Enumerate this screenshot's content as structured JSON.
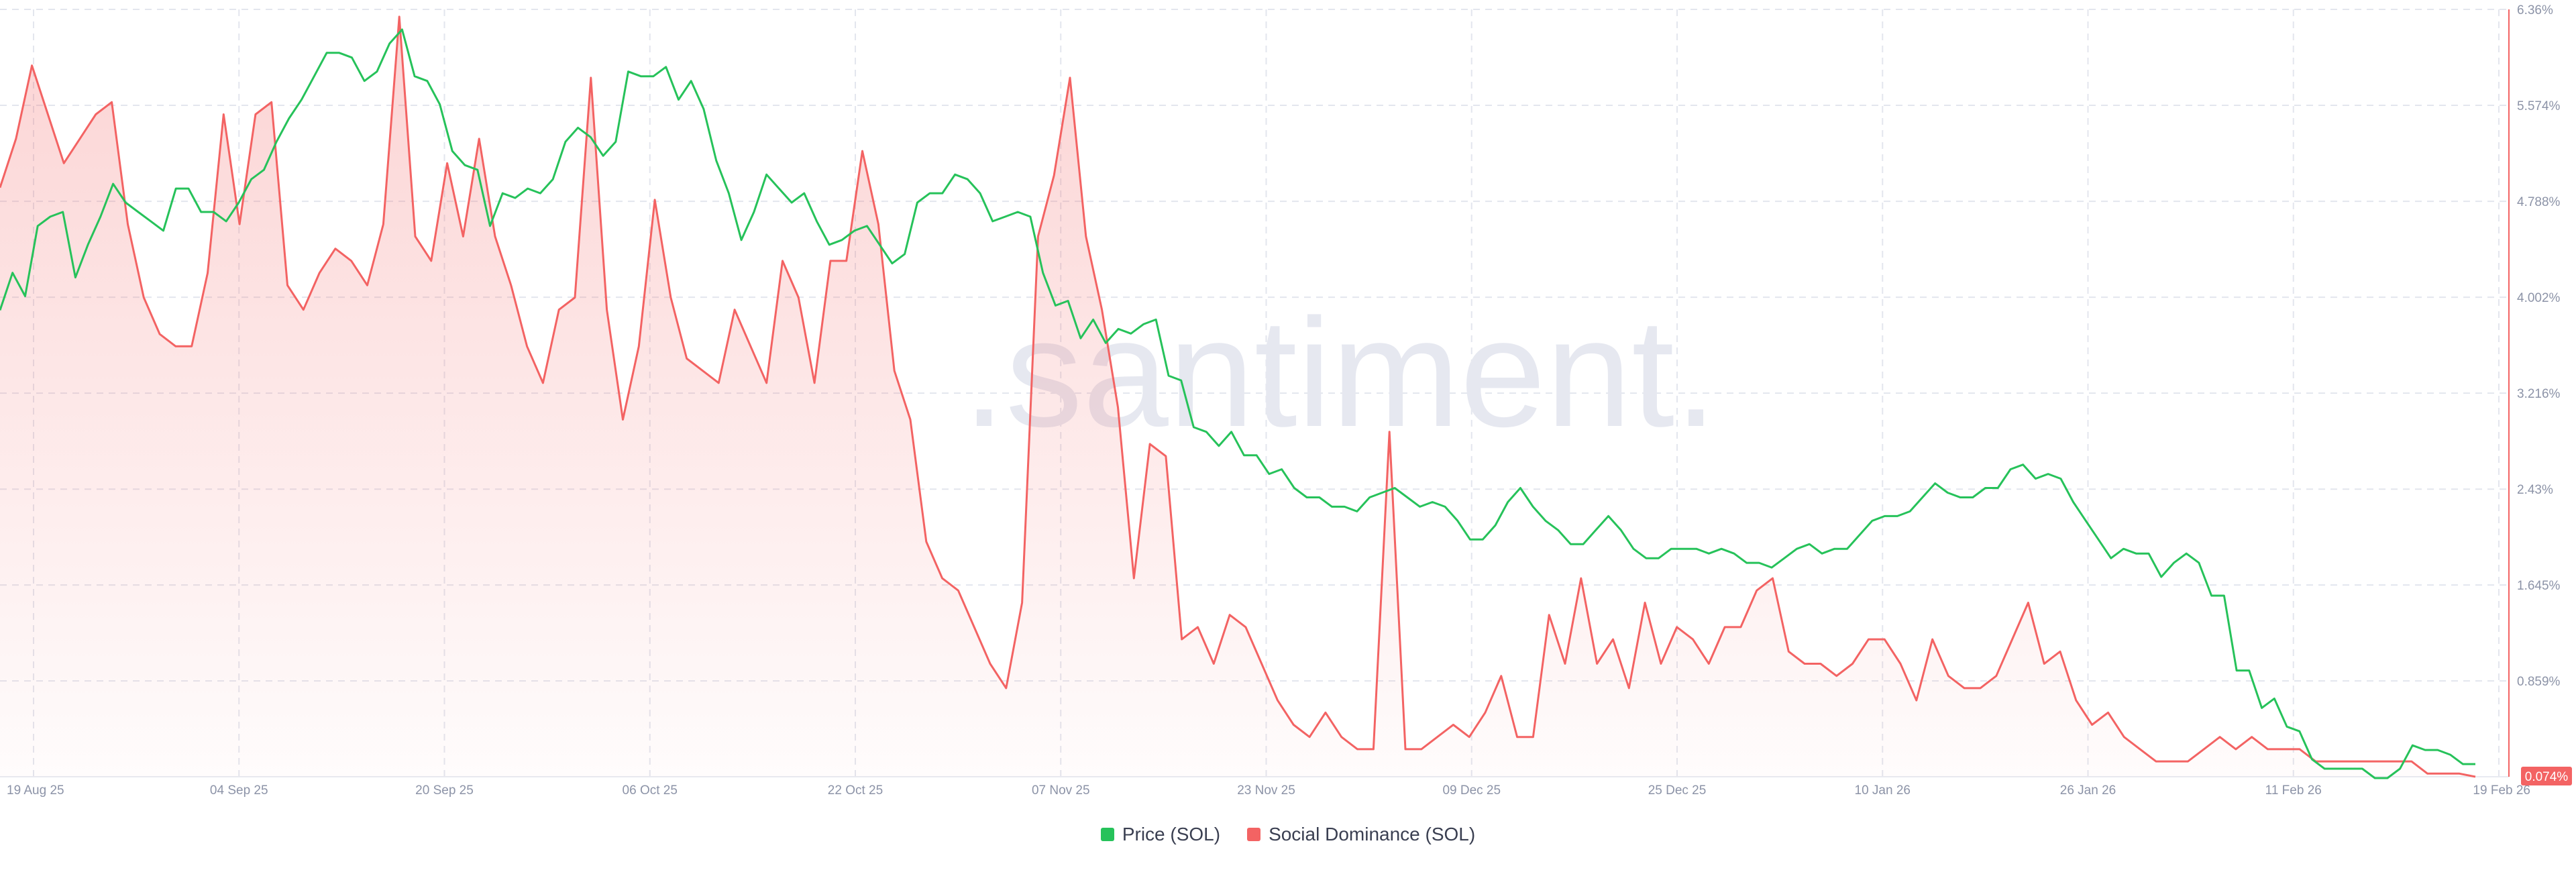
{
  "watermark": ".santiment.",
  "colors": {
    "price": "#26c25a",
    "dominance": "#f36363",
    "grid": "#e3e6ee",
    "label_bg": "#f36363"
  },
  "legend": {
    "price_label": "Price (SOL)",
    "dominance_label": "Social Dominance (SOL)"
  },
  "current_value_label": "0.074%",
  "chart_data": {
    "type": "line",
    "x_tick_labels": [
      "19 Aug 25",
      "04 Sep 25",
      "20 Sep 25",
      "06 Oct 25",
      "22 Oct 25",
      "07 Nov 25",
      "23 Nov 25",
      "09 Dec 25",
      "25 Dec 25",
      "10 Jan 26",
      "26 Jan 26",
      "11 Feb 26",
      "19 Feb 26"
    ],
    "y_right_tick_labels": [
      "6.36%",
      "5.574%",
      "4.788%",
      "4.002%",
      "3.216%",
      "2.43%",
      "1.645%",
      "0.859%"
    ],
    "ylim_right": [
      0.074,
      6.36
    ],
    "grid": true,
    "legend_position": "bottom",
    "series": [
      {
        "name": "Price (SOL)",
        "axis": "left-hidden",
        "values": [
          178,
          186,
          181,
          196,
          198,
          199,
          185,
          192,
          198,
          205,
          201,
          199,
          197,
          195,
          204,
          204,
          199,
          199,
          197,
          201,
          206,
          208,
          214,
          219,
          223,
          228,
          233,
          233,
          232,
          227,
          229,
          235,
          238,
          228,
          227,
          222,
          212,
          209,
          208,
          196,
          203,
          202,
          204,
          203,
          206,
          214,
          217,
          215,
          211,
          214,
          229,
          228,
          228,
          230,
          223,
          227,
          221,
          210,
          203,
          193,
          199,
          207,
          204,
          201,
          203,
          197,
          192,
          193,
          195,
          196,
          192,
          188,
          190,
          201,
          203,
          203,
          207,
          206,
          203,
          197,
          198,
          199,
          198,
          186,
          179,
          180,
          172,
          176,
          171,
          174,
          173,
          175,
          176,
          164,
          163,
          153,
          152,
          149,
          152,
          147,
          147,
          143,
          144,
          140,
          138,
          138,
          136,
          136,
          135,
          138,
          139,
          140,
          138,
          136,
          137,
          136,
          133,
          129,
          129,
          132,
          137,
          140,
          136,
          133,
          131,
          128,
          128,
          131,
          134,
          131,
          127,
          125,
          125,
          127,
          127,
          127,
          126,
          127,
          126,
          124,
          124,
          123,
          125,
          127,
          128,
          126,
          127,
          127,
          130,
          133,
          134,
          134,
          135,
          138,
          141,
          139,
          138,
          138,
          140,
          140,
          144,
          145,
          142,
          143,
          142,
          137,
          133,
          129,
          125,
          127,
          126,
          126,
          121,
          124,
          126,
          124,
          117,
          117,
          101,
          101,
          93,
          95,
          89,
          88,
          82,
          80,
          80,
          80,
          80,
          78,
          78,
          80,
          85,
          84,
          84,
          83,
          81,
          81
        ]
      },
      {
        "name": "Social Dominance (SOL)",
        "axis": "right",
        "values": [
          4.9,
          5.3,
          5.9,
          5.5,
          5.1,
          5.3,
          5.5,
          5.6,
          4.6,
          4.0,
          3.7,
          3.6,
          3.6,
          4.2,
          5.5,
          4.6,
          5.5,
          5.6,
          4.1,
          3.9,
          4.2,
          4.4,
          4.3,
          4.1,
          4.6,
          6.3,
          4.5,
          4.3,
          5.1,
          4.5,
          5.3,
          4.5,
          4.1,
          3.6,
          3.3,
          3.9,
          4.0,
          5.8,
          3.9,
          3.0,
          3.6,
          4.8,
          4.0,
          3.5,
          3.4,
          3.3,
          3.9,
          3.6,
          3.3,
          4.3,
          4.0,
          3.3,
          4.3,
          4.3,
          5.2,
          4.6,
          3.4,
          3.0,
          2.0,
          1.7,
          1.6,
          1.3,
          1.0,
          0.8,
          1.5,
          4.5,
          5.0,
          5.8,
          4.5,
          3.9,
          3.1,
          1.7,
          2.8,
          2.7,
          1.2,
          1.3,
          1.0,
          1.4,
          1.3,
          1.0,
          0.7,
          0.5,
          0.4,
          0.6,
          0.4,
          0.3,
          0.3,
          2.9,
          0.3,
          0.3,
          0.4,
          0.5,
          0.4,
          0.6,
          0.9,
          0.4,
          0.4,
          1.4,
          1.0,
          1.7,
          1.0,
          1.2,
          0.8,
          1.5,
          1.0,
          1.3,
          1.2,
          1.0,
          1.3,
          1.3,
          1.6,
          1.7,
          1.1,
          1.0,
          1.0,
          0.9,
          1.0,
          1.2,
          1.2,
          1.0,
          0.7,
          1.2,
          0.9,
          0.8,
          0.8,
          0.9,
          1.2,
          1.5,
          1.0,
          1.1,
          0.7,
          0.5,
          0.6,
          0.4,
          0.3,
          0.2,
          0.2,
          0.2,
          0.3,
          0.4,
          0.3,
          0.4,
          0.3,
          0.3,
          0.3,
          0.2,
          0.2,
          0.2,
          0.2,
          0.2,
          0.2,
          0.2,
          0.1,
          0.1,
          0.1,
          0.074
        ]
      }
    ]
  }
}
